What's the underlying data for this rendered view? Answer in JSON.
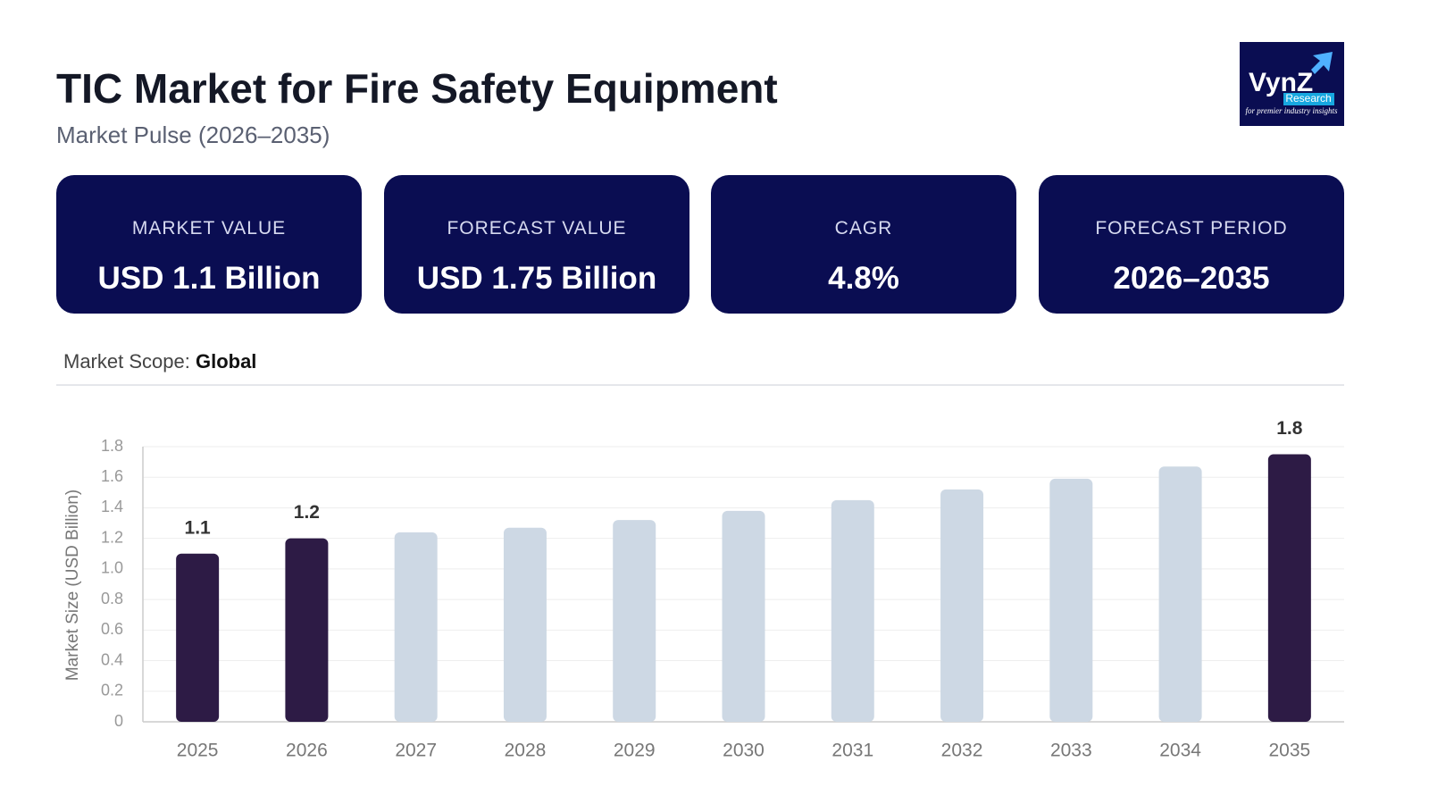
{
  "header": {
    "title": "TIC Market for Fire Safety Equipment",
    "subtitle": "Market Pulse (2026–2035)"
  },
  "logo": {
    "name": "VynZ",
    "sub": "Research",
    "tagline": "for premier industry insights"
  },
  "cards": [
    {
      "label": "MARKET VALUE",
      "value": "USD 1.1 Billion"
    },
    {
      "label": "FORECAST VALUE",
      "value": "USD 1.75 Billion"
    },
    {
      "label": "CAGR",
      "value": "4.8%"
    },
    {
      "label": "FORECAST PERIOD",
      "value": "2026–2035"
    }
  ],
  "scope": {
    "label": "Market Scope:",
    "value": "Global"
  },
  "chart_data": {
    "type": "bar",
    "ylabel": "Market Size (USD Billion)",
    "categories": [
      "2025",
      "2026",
      "2027",
      "2028",
      "2029",
      "2030",
      "2031",
      "2032",
      "2033",
      "2034",
      "2035"
    ],
    "values": [
      1.1,
      1.2,
      1.24,
      1.27,
      1.32,
      1.38,
      1.45,
      1.52,
      1.59,
      1.67,
      1.75
    ],
    "value_labels": [
      "1.1",
      "1.2",
      null,
      null,
      null,
      null,
      null,
      null,
      null,
      null,
      "1.8"
    ],
    "colors": [
      "#2d1b45",
      "#2d1b45",
      "#cdd8e4",
      "#cdd8e4",
      "#cdd8e4",
      "#cdd8e4",
      "#cdd8e4",
      "#cdd8e4",
      "#cdd8e4",
      "#cdd8e4",
      "#2d1b45"
    ],
    "ylim": [
      0,
      1.8
    ],
    "yticks": [
      0,
      0.2,
      0.4,
      0.6,
      0.8,
      {
        "value": 1,
        "label": "1.0"
      },
      1.2,
      1.4,
      1.6,
      1.8
    ],
    "grid": true
  }
}
